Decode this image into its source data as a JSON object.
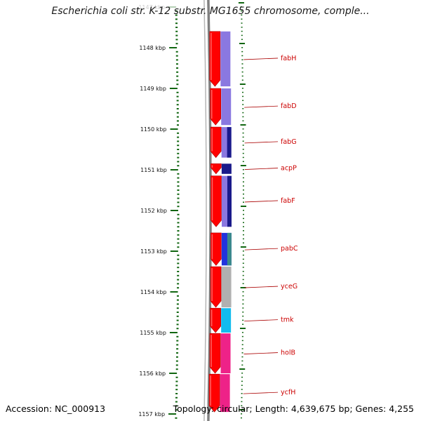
{
  "title": "Escherichia coli str. K-12 substr. MG1655 chromosome, comple...",
  "footer": {
    "accession": "Accession: NC_000913",
    "summary": "Topology: circular; Length: 4,639,675 bp; Genes: 4,255"
  },
  "ticks": [
    {
      "label": "1147 kbp",
      "kbp": 1147,
      "faded": true
    },
    {
      "label": "1148 kbp",
      "kbp": 1148
    },
    {
      "label": "1149 kbp",
      "kbp": 1149
    },
    {
      "label": "1150 kbp",
      "kbp": 1150
    },
    {
      "label": "1151 kbp",
      "kbp": 1151
    },
    {
      "label": "1152 kbp",
      "kbp": 1152
    },
    {
      "label": "1153 kbp",
      "kbp": 1153
    },
    {
      "label": "1154 kbp",
      "kbp": 1154
    },
    {
      "label": "1155 kbp",
      "kbp": 1155
    },
    {
      "label": "1156 kbp",
      "kbp": 1156
    },
    {
      "label": "1157 kbp",
      "kbp": 1157
    }
  ],
  "genes": [
    {
      "name": "fabH",
      "start": 1147.6,
      "end": 1148.95,
      "cog": "#8a78e0"
    },
    {
      "name": "fabD",
      "start": 1149.0,
      "end": 1149.9,
      "cog": "#8a78e0"
    },
    {
      "name": "fabG",
      "start": 1149.95,
      "end": 1150.7,
      "cog": "#8a78e0",
      "cog2": "#1a1a8a"
    },
    {
      "name": "acpP",
      "start": 1150.85,
      "end": 1151.1,
      "cog": "#1a1a8a"
    },
    {
      "name": "fabF",
      "start": 1151.15,
      "end": 1152.4,
      "cog": "#8a78e0",
      "cog2": "#1a1a8a"
    },
    {
      "name": "pabC",
      "start": 1152.55,
      "end": 1153.35,
      "cog": "#2233dd",
      "cog2": "#3a8a8a"
    },
    {
      "name": "yceG",
      "start": 1153.38,
      "end": 1154.38,
      "cog": "#b0b0b0"
    },
    {
      "name": "tmk",
      "start": 1154.4,
      "end": 1155.0,
      "cog": "#11bbee"
    },
    {
      "name": "holB",
      "start": 1155.02,
      "end": 1156.0,
      "cog": "#ee2288"
    },
    {
      "name": "ycfH",
      "start": 1156.02,
      "end": 1156.95,
      "cog": "#ee2288"
    }
  ],
  "colors": {
    "cds": "#ff0000",
    "backbone": "#808080",
    "tick": "#116611",
    "gene_label": "#cc0000",
    "label_line": "#aa0000"
  }
}
